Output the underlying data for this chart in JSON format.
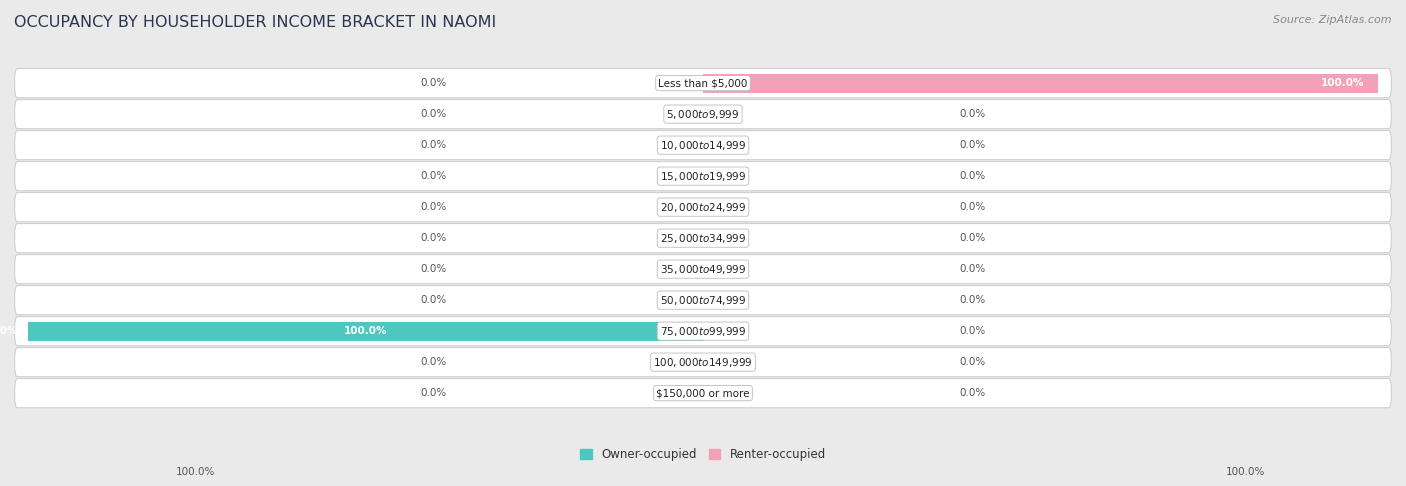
{
  "title": "OCCUPANCY BY HOUSEHOLDER INCOME BRACKET IN NAOMI",
  "source": "Source: ZipAtlas.com",
  "categories": [
    "Less than $5,000",
    "$5,000 to $9,999",
    "$10,000 to $14,999",
    "$15,000 to $19,999",
    "$20,000 to $24,999",
    "$25,000 to $34,999",
    "$35,000 to $49,999",
    "$50,000 to $74,999",
    "$75,000 to $99,999",
    "$100,000 to $149,999",
    "$150,000 or more"
  ],
  "owner_values": [
    0.0,
    0.0,
    0.0,
    0.0,
    0.0,
    0.0,
    0.0,
    0.0,
    100.0,
    0.0,
    0.0
  ],
  "renter_values": [
    100.0,
    0.0,
    0.0,
    0.0,
    0.0,
    0.0,
    0.0,
    0.0,
    0.0,
    0.0,
    0.0
  ],
  "owner_color": "#4dc8c0",
  "renter_color": "#f4a0b8",
  "bg_color": "#eaeaea",
  "row_bg_color": "#ffffff",
  "row_alt_color": "#f5f5f5",
  "bar_height": 0.62,
  "xlim": 100,
  "title_fontsize": 11.5,
  "value_fontsize": 7.5,
  "category_fontsize": 7.5,
  "legend_fontsize": 8.5,
  "source_fontsize": 8
}
